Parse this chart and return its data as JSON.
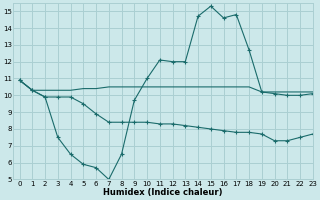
{
  "xlabel": "Humidex (Indice chaleur)",
  "bg_color": "#cce8ea",
  "grid_color": "#aacfd2",
  "line_color": "#1a6b6b",
  "xlim": [
    -0.5,
    23
  ],
  "ylim": [
    5,
    15.5
  ],
  "yticks": [
    5,
    6,
    7,
    8,
    9,
    10,
    11,
    12,
    13,
    14,
    15
  ],
  "xticks": [
    0,
    1,
    2,
    3,
    4,
    5,
    6,
    7,
    8,
    9,
    10,
    11,
    12,
    13,
    14,
    15,
    16,
    17,
    18,
    19,
    20,
    21,
    22,
    23
  ],
  "line1_x": [
    0,
    1,
    2,
    3,
    4,
    5,
    6,
    7,
    8,
    9,
    10,
    11,
    12,
    13,
    14,
    15,
    16,
    17,
    18,
    19,
    20,
    21,
    22,
    23
  ],
  "line1_y": [
    10.9,
    10.3,
    9.9,
    9.9,
    9.9,
    9.5,
    8.9,
    8.4,
    8.4,
    8.4,
    8.4,
    8.3,
    8.3,
    8.2,
    8.1,
    8.0,
    7.9,
    7.8,
    7.8,
    7.7,
    7.3,
    7.3,
    7.5,
    7.7
  ],
  "line2_x": [
    0,
    1,
    2,
    3,
    4,
    5,
    6,
    7,
    8,
    9,
    10,
    11,
    12,
    13,
    14,
    15,
    16,
    17,
    18,
    19,
    20,
    21,
    22,
    23
  ],
  "line2_y": [
    10.9,
    10.3,
    10.3,
    10.3,
    10.3,
    10.4,
    10.4,
    10.5,
    10.5,
    10.5,
    10.5,
    10.5,
    10.5,
    10.5,
    10.5,
    10.5,
    10.5,
    10.5,
    10.5,
    10.2,
    10.2,
    10.2,
    10.2,
    10.2
  ],
  "line3_x": [
    0,
    1,
    2,
    3,
    4,
    5,
    6,
    7,
    8,
    9,
    10,
    11,
    12,
    13,
    14,
    15,
    16,
    17,
    18,
    19,
    20,
    21,
    22,
    23
  ],
  "line3_y": [
    10.9,
    10.3,
    9.9,
    7.5,
    6.5,
    5.9,
    5.7,
    5.0,
    6.5,
    9.7,
    11.0,
    12.1,
    12.0,
    12.0,
    14.7,
    15.3,
    14.6,
    14.8,
    12.7,
    10.2,
    10.1,
    10.0,
    10.0,
    10.1
  ],
  "marker_x3": [
    0,
    1,
    2,
    3,
    4,
    5,
    6,
    7,
    8,
    9,
    10,
    11,
    12,
    13,
    14,
    15,
    16,
    17,
    18,
    19,
    20,
    21,
    22,
    23
  ],
  "marker_x1": [
    0,
    1,
    2,
    3,
    4,
    5,
    6,
    7,
    8,
    9,
    10,
    11,
    12,
    13,
    14,
    15,
    16,
    17,
    18,
    19,
    20,
    21,
    22,
    23
  ]
}
